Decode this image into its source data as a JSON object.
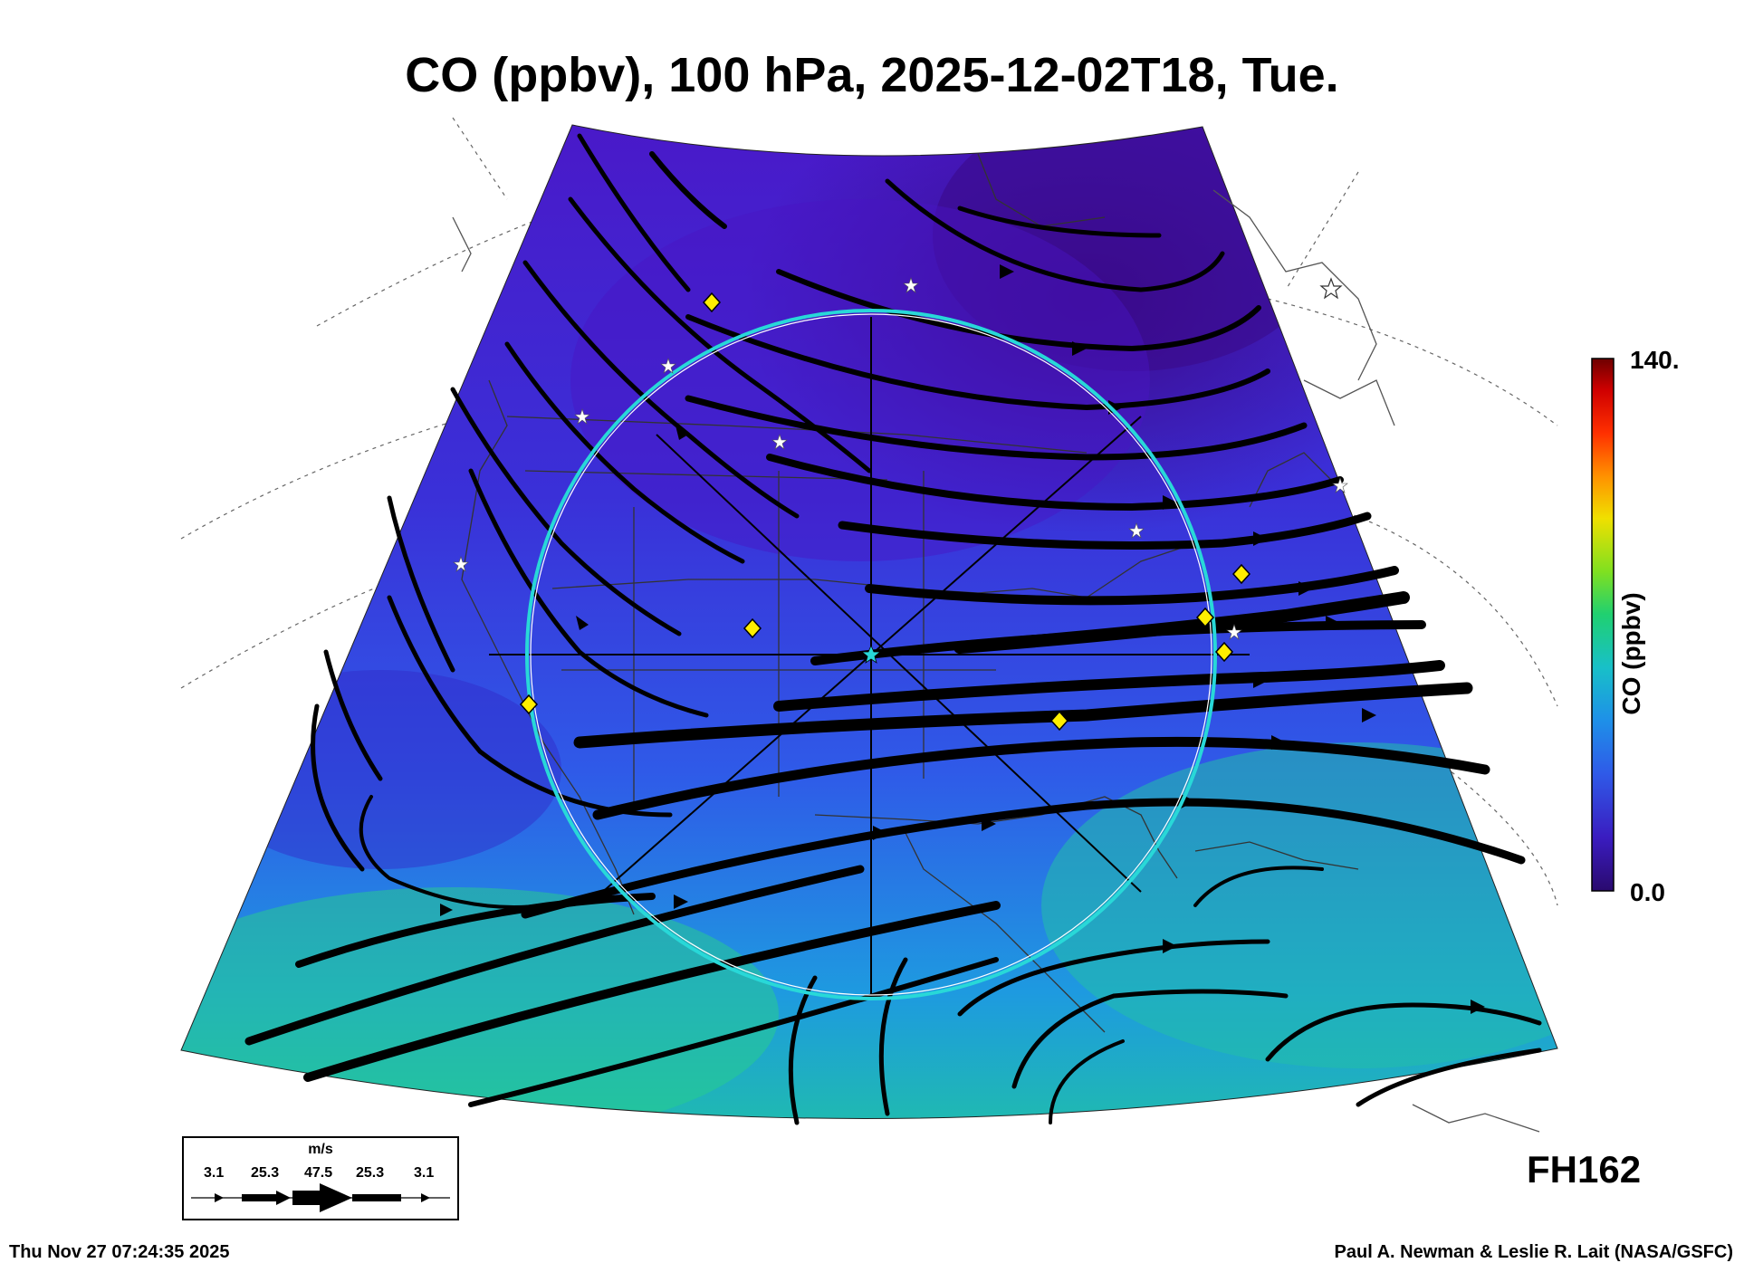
{
  "title": "CO (ppbv), 100 hPa, 2025-12-02T18, Tue.",
  "colorbar": {
    "title": "CO (ppbv)",
    "max_label": "140.",
    "min_label": "0.0",
    "stops": [
      "#2a0a6e",
      "#3a1cc0",
      "#2f5ae8",
      "#1e90e8",
      "#18c0c8",
      "#20d070",
      "#80e020",
      "#f0e000",
      "#ff9000",
      "#ff3000",
      "#d00000",
      "#6e0000"
    ]
  },
  "legend": {
    "unit": "m/s",
    "speeds": [
      "3.1",
      "25.3",
      "47.5",
      "25.3",
      "3.1"
    ]
  },
  "forecast_hour": "FH162",
  "timestamp": "Thu Nov 27 07:24:35 2025",
  "credit": "Paul A. Newman & Leslie R. Lait (NASA/GSFC)",
  "colors": {
    "low_co": "#3a1cc0",
    "mid_co": "#2f6ae8",
    "high_co": "#20c0b0",
    "ring": "#28d8d8",
    "site_marker": "#ffee00",
    "star_marker": "#ffffff"
  },
  "markers": {
    "diamond_icon": "yellow-diamond-icon",
    "star_icon": "white-star-icon"
  }
}
